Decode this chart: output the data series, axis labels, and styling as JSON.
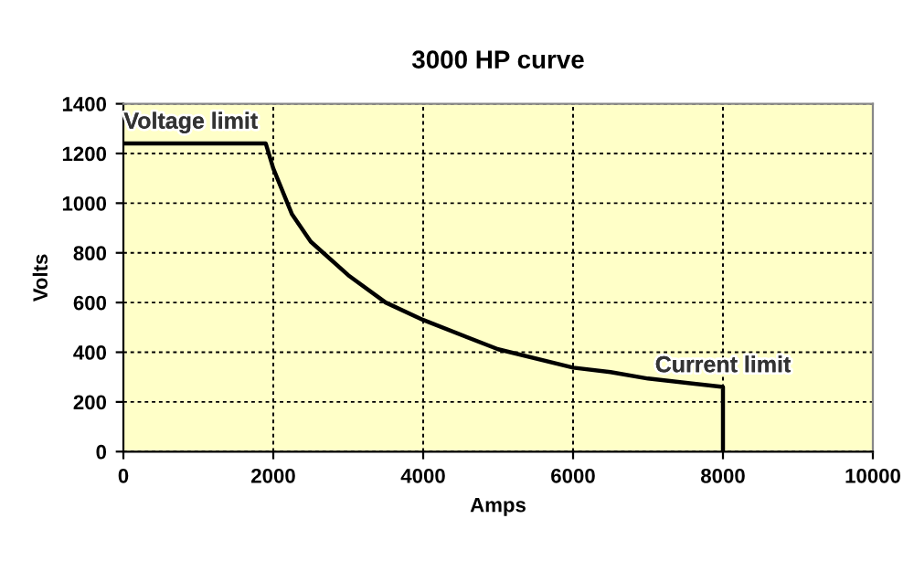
{
  "chart_data": {
    "type": "line",
    "title": "3000 HP curve",
    "xlabel": "Amps",
    "ylabel": "Volts",
    "x": [
      0,
      1900,
      2000,
      2250,
      2500,
      3000,
      3500,
      4000,
      5000,
      6000,
      6500,
      7000,
      8000,
      8000
    ],
    "series": [
      {
        "color": "#000000",
        "values": [
          1240,
          1240,
          1140,
          955,
          845,
          710,
          600,
          530,
          412,
          338,
          320,
          294,
          260,
          0
        ]
      }
    ],
    "xlim": [
      0,
      10000
    ],
    "xticks": [
      0,
      2000,
      4000,
      6000,
      8000,
      10000
    ],
    "ylim": [
      0,
      1400
    ],
    "yticks": [
      0,
      200,
      400,
      600,
      800,
      1000,
      1200,
      1400
    ],
    "grid": true,
    "legend": false,
    "marker": "none",
    "line_style": "solid",
    "annotations": [
      {
        "text": "Voltage limit",
        "x": 900,
        "y": 1240
      },
      {
        "text": "Current limit",
        "x": 8000,
        "y": 260
      }
    ]
  }
}
